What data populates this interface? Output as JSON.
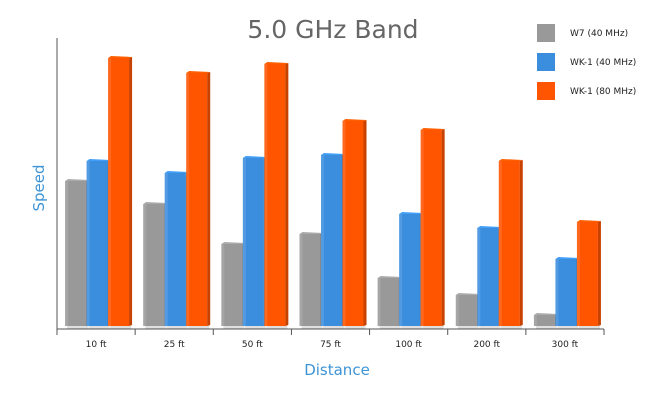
{
  "chart_data": {
    "type": "bar",
    "title": "5.0 GHz Band",
    "xlabel": "Distance",
    "ylabel": "Speed",
    "categories": [
      "10 ft",
      "25 ft",
      "50 ft",
      "75 ft",
      "100 ft",
      "200 ft",
      "300 ft"
    ],
    "series": [
      {
        "name": "W7 (40 MHz)",
        "color": "#999999",
        "values": [
          145,
          122,
          82,
          92,
          48,
          31,
          11
        ]
      },
      {
        "name": "WK-1 (40 MHz)",
        "color": "#3b8ede",
        "values": [
          165,
          153,
          168,
          171,
          112,
          98,
          67
        ]
      },
      {
        "name": "WK-1 (80 MHz)",
        "color": "#ff5500",
        "values": [
          268,
          253,
          262,
          205,
          196,
          165,
          104
        ]
      }
    ],
    "ylim": [
      0,
      290
    ],
    "legend_position": "top-right",
    "grid": false
  }
}
